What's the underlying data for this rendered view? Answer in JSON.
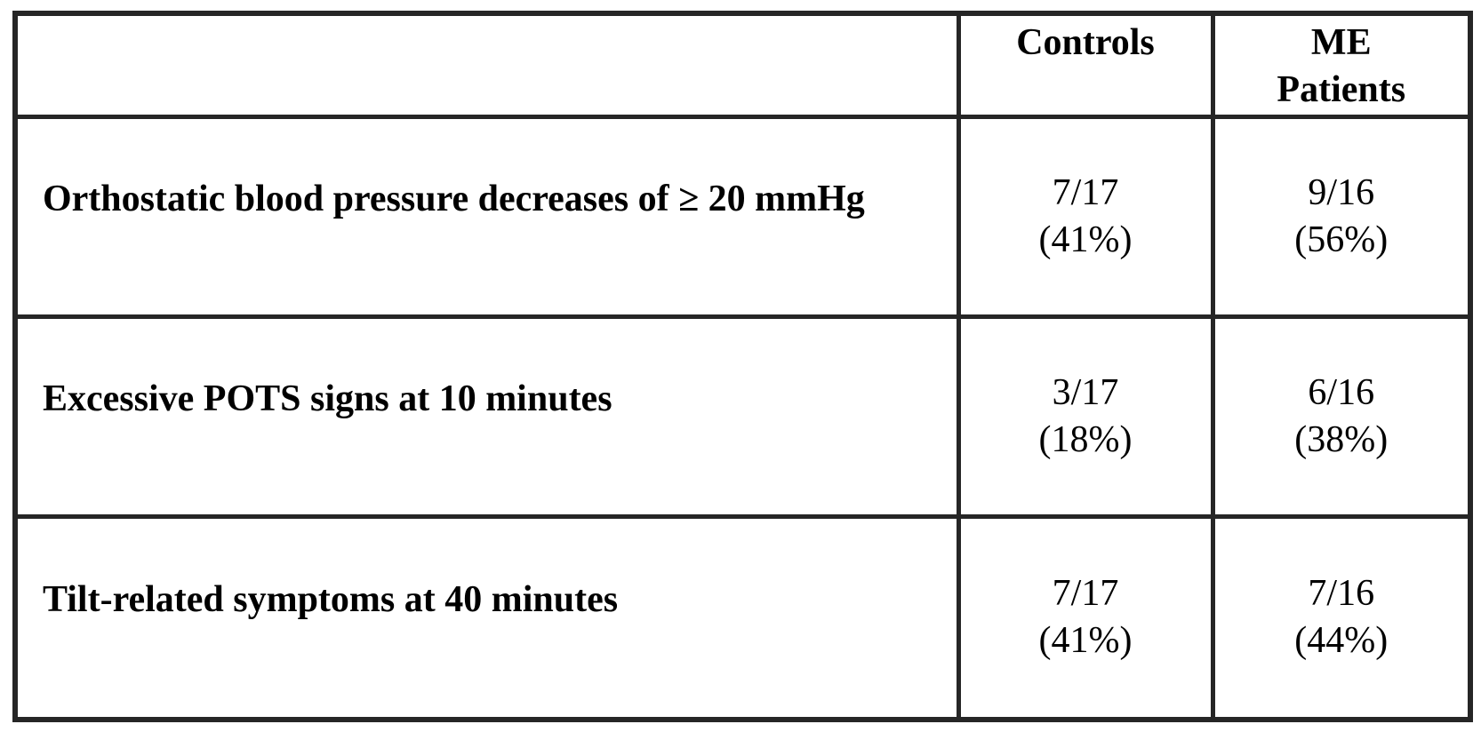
{
  "page": {
    "background_color": "#ffffff",
    "text_color": "#000000",
    "border_color": "#262626"
  },
  "table": {
    "header": {
      "row_label_column": "",
      "controls": "Controls",
      "me_patients": "ME Patients",
      "me_patients_lines": [
        "ME",
        "Patients"
      ]
    },
    "rows": [
      {
        "label": "Orthostatic blood pressure decreases of ≥ 20 mmHg",
        "controls": {
          "fraction": "7/17",
          "percent": "(41%)"
        },
        "me_patients": {
          "fraction": "9/16",
          "percent": "(56%)"
        }
      },
      {
        "label": "Excessive POTS signs at 10 minutes",
        "controls": {
          "fraction": "3/17",
          "percent": "(18%)"
        },
        "me_patients": {
          "fraction": "6/16",
          "percent": "(38%)"
        }
      },
      {
        "label": "Tilt-related symptoms at 40 minutes",
        "controls": {
          "fraction": "7/17",
          "percent": "(41%)"
        },
        "me_patients": {
          "fraction": "7/16",
          "percent": "(44%)"
        }
      }
    ]
  },
  "chart_data": {
    "type": "table",
    "columns": [
      "",
      "Controls",
      "ME Patients"
    ],
    "rows": [
      [
        "Orthostatic blood pressure decreases of ≥ 20 mmHg",
        "7/17 (41%)",
        "9/16 (56%)"
      ],
      [
        "Excessive POTS signs at 10 minutes",
        "3/17 (18%)",
        "6/16 (38%)"
      ],
      [
        "Tilt-related symptoms at 40 minutes",
        "7/17 (41%)",
        "7/16 (44%)"
      ]
    ],
    "notes": {
      "controls_denominator": 17,
      "me_patients_denominator": 16,
      "controls_counts": [
        7,
        3,
        7
      ],
      "me_patients_counts": [
        9,
        6,
        7
      ],
      "controls_percents": [
        41,
        18,
        41
      ],
      "me_patients_percents": [
        56,
        38,
        44
      ]
    }
  }
}
